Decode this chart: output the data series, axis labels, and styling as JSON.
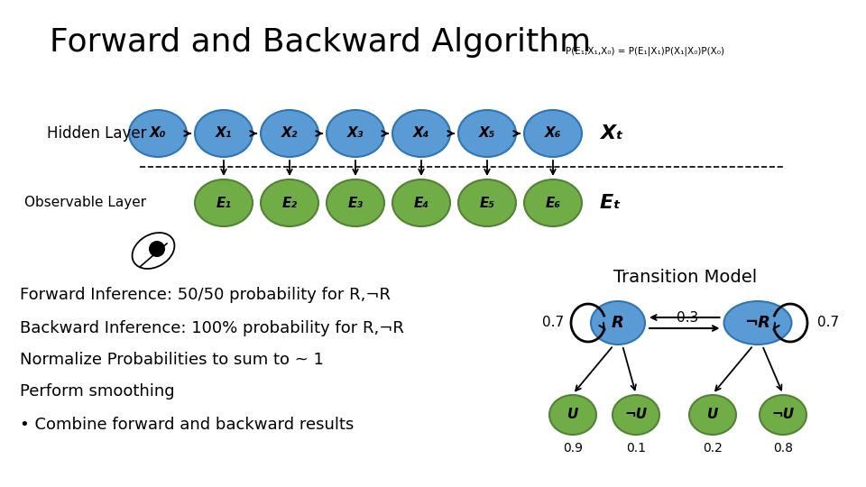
{
  "title": "Forward and Backward Algorithm",
  "formula": "P(E₁,X₁,X₀) = P(E₁|X₁)P(X₁|X₀)P(X₀)",
  "hidden_nodes": [
    "X₀",
    "X₁",
    "X₂",
    "X₃",
    "X₄",
    "X₅",
    "X₆"
  ],
  "observable_nodes": [
    "E₁",
    "E₂",
    "E₃",
    "E₄",
    "E₅",
    "E₆"
  ],
  "hidden_label": "Hidden Layer",
  "observable_label": "Observable Layer",
  "xt_label": "Xₜ",
  "et_label": "Eₜ",
  "blue_color": "#5B9BD5",
  "green_color": "#70AD47",
  "blue_edge": "#2E75B6",
  "green_edge": "#538135",
  "transition_title": "Transition Model",
  "tm_nodes_top": [
    "R",
    "¬R"
  ],
  "tm_nodes_bot": [
    "U",
    "¬U",
    "U",
    "¬U"
  ],
  "tm_bot_labels": [
    "0.9",
    "0.1",
    "0.2",
    "0.8"
  ],
  "text_lines": [
    "Forward Inference: 50/50 probability for R,¬R",
    "Backward Inference: 100% probability for R,¬R",
    "Normalize Probabilities to sum to ~ 1",
    "Perform smoothing",
    "• Combine forward and backward results"
  ],
  "bg_color": "#FFFFFF"
}
